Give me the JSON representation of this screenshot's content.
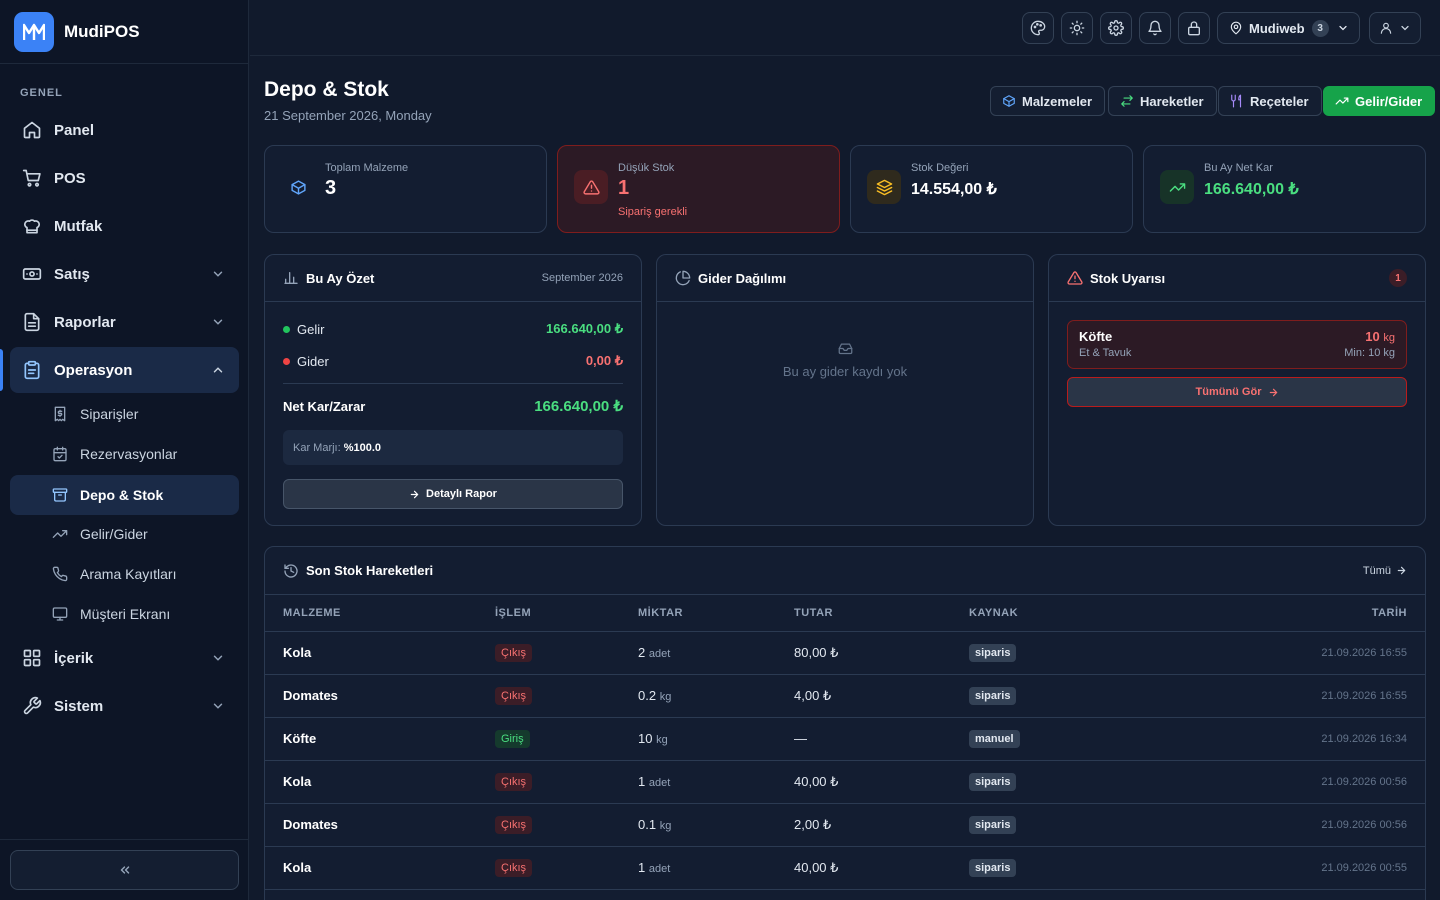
{
  "app": {
    "name": "MudiPOS",
    "logo_text": "M"
  },
  "sidebar": {
    "section": "GENEL",
    "items": [
      {
        "label": "Panel",
        "icon": "home-icon"
      },
      {
        "label": "POS",
        "icon": "cart-icon"
      },
      {
        "label": "Mutfak",
        "icon": "chef-hat-icon"
      },
      {
        "label": "Satış",
        "icon": "banknote-icon"
      },
      {
        "label": "Raporlar",
        "icon": "file-icon"
      },
      {
        "label": "Operasyon",
        "icon": "clipboard-icon"
      },
      {
        "label": "İçerik",
        "icon": "grid-icon"
      },
      {
        "label": "Sistem",
        "icon": "wrench-icon"
      }
    ],
    "sub_items": [
      {
        "label": "Siparişler",
        "icon": "receipt-icon"
      },
      {
        "label": "Rezervasyonlar",
        "icon": "calendar-check-icon"
      },
      {
        "label": "Depo & Stok",
        "icon": "archive-icon"
      },
      {
        "label": "Gelir/Gider",
        "icon": "trending-up-icon"
      },
      {
        "label": "Arama Kayıtları",
        "icon": "phone-icon"
      },
      {
        "label": "Müşteri Ekranı",
        "icon": "monitor-icon"
      }
    ],
    "collapse_label": "«"
  },
  "topbar": {
    "location": "Mudiweb",
    "location_count": "3"
  },
  "page": {
    "title": "Depo & Stok",
    "date": "21 September 2026, Monday",
    "buttons": [
      "Malzemeler",
      "Hareketler",
      "Reçeteler",
      "Gelir/Gider"
    ]
  },
  "stats": [
    {
      "label": "Toplam Malzeme",
      "value": "3"
    },
    {
      "label": "Düşük Stok",
      "value": "1",
      "sub": "Sipariş gerekli"
    },
    {
      "label": "Stok Değeri",
      "value": "14.554,00 ₺"
    },
    {
      "label": "Bu Ay Net Kar",
      "value": "166.640,00 ₺"
    }
  ],
  "summary": {
    "title": "Bu Ay Özet",
    "period": "September 2026",
    "income_label": "Gelir",
    "income": "166.640,00 ₺",
    "expense_label": "Gider",
    "expense": "0,00 ₺",
    "net_label": "Net Kar/Zarar",
    "net": "166.640,00 ₺",
    "margin_label": "Kar Marjı:",
    "margin": "%100.0",
    "report_button": "Detaylı Rapor"
  },
  "expense_dist": {
    "title": "Gider Dağılımı",
    "empty": "Bu ay gider kaydı yok"
  },
  "stock_alert": {
    "title": "Stok Uyarısı",
    "count": "1",
    "item": {
      "name": "Köfte",
      "category": "Et & Tavuk",
      "qty": "10",
      "unit": "kg",
      "min": "Min: 10 kg"
    },
    "see_all": "Tümünü Gör"
  },
  "movements": {
    "title": "Son Stok Hareketleri",
    "all_link": "Tümü",
    "columns": [
      "MALZEME",
      "İŞLEM",
      "MİKTAR",
      "TUTAR",
      "KAYNAK",
      "TARİH"
    ],
    "rows": [
      {
        "item": "Kola",
        "op": "Çıkış",
        "op_type": "out",
        "qty": "2",
        "unit": "adet",
        "amount": "80,00 ₺",
        "source": "siparis",
        "date": "21.09.2026 16:55"
      },
      {
        "item": "Domates",
        "op": "Çıkış",
        "op_type": "out",
        "qty": "0.2",
        "unit": "kg",
        "amount": "4,00 ₺",
        "source": "siparis",
        "date": "21.09.2026 16:55"
      },
      {
        "item": "Köfte",
        "op": "Giriş",
        "op_type": "in",
        "qty": "10",
        "unit": "kg",
        "amount": "—",
        "source": "manuel",
        "date": "21.09.2026 16:34"
      },
      {
        "item": "Kola",
        "op": "Çıkış",
        "op_type": "out",
        "qty": "1",
        "unit": "adet",
        "amount": "40,00 ₺",
        "source": "siparis",
        "date": "21.09.2026 00:56"
      },
      {
        "item": "Domates",
        "op": "Çıkış",
        "op_type": "out",
        "qty": "0.1",
        "unit": "kg",
        "amount": "2,00 ₺",
        "source": "siparis",
        "date": "21.09.2026 00:56"
      },
      {
        "item": "Kola",
        "op": "Çıkış",
        "op_type": "out",
        "qty": "1",
        "unit": "adet",
        "amount": "40,00 ₺",
        "source": "siparis",
        "date": "21.09.2026 00:55"
      },
      {
        "item": "Kola",
        "op": "Çıkış",
        "op_type": "out",
        "qty": "1",
        "unit": "adet",
        "amount": "40,00 ₺",
        "source": "siparis",
        "date": "21.09.2026 00:55"
      }
    ]
  },
  "colors": {
    "accent": "#3b82f6",
    "success": "#4ade80",
    "danger": "#f87171",
    "background": "#111a2c"
  }
}
